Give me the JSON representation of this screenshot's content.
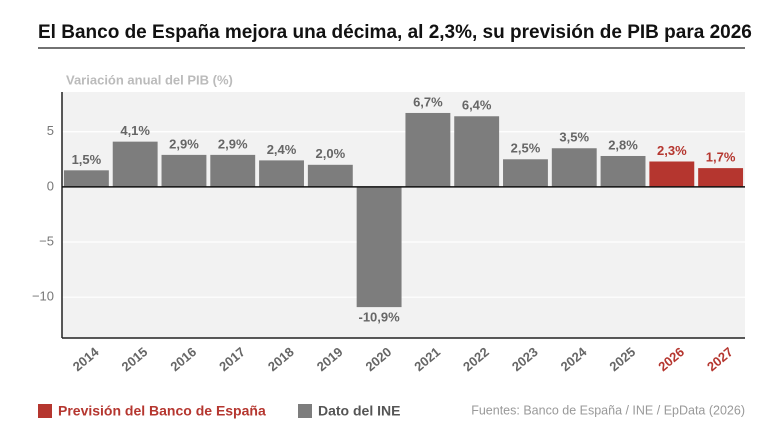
{
  "chart_data": {
    "type": "bar",
    "title": "El Banco de España mejora una décima, al 2,3%, su previsión de PIB para 2026",
    "y_label": "Variación anual del PIB (%)",
    "source": "Fuentes: Banco de España / INE / EpData (2026)",
    "categories": [
      "2014",
      "2015",
      "2016",
      "2017",
      "2018",
      "2019",
      "2020",
      "2021",
      "2022",
      "2023",
      "2024",
      "2025",
      "2026",
      "2027"
    ],
    "series": [
      {
        "name": "Previsión del Banco de España",
        "color": "#b5362f",
        "values": [
          null,
          null,
          null,
          null,
          null,
          null,
          null,
          null,
          null,
          null,
          null,
          null,
          2.3,
          1.7
        ],
        "value_labels": [
          null,
          null,
          null,
          null,
          null,
          null,
          null,
          null,
          null,
          null,
          null,
          null,
          "2,3%",
          "1,7%"
        ]
      },
      {
        "name": "Dato del INE",
        "color": "#7d7d7d",
        "values": [
          1.5,
          4.1,
          2.9,
          2.9,
          2.4,
          2.0,
          -10.9,
          6.7,
          6.4,
          2.5,
          3.5,
          2.8,
          null,
          null
        ],
        "value_labels": [
          "1,5%",
          "4,1%",
          "2,9%",
          "2,9%",
          "2,4%",
          "2,0%",
          "-10,9%",
          "6,7%",
          "6,4%",
          "2,5%",
          "3,5%",
          "2,8%",
          null,
          null
        ]
      }
    ],
    "ylim": [
      -13.7,
      8.6
    ],
    "yticks": [
      {
        "value": -10,
        "label": "−10"
      },
      {
        "value": -5,
        "label": "−5"
      },
      0,
      5
    ],
    "grid": true
  }
}
